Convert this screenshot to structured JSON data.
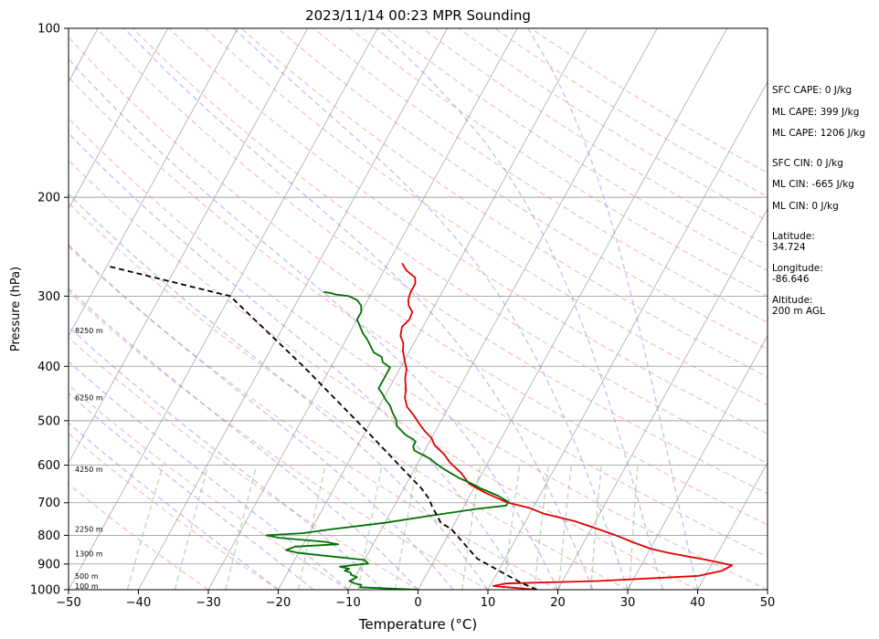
{
  "chart_data": {
    "type": "line",
    "title": "2023/11/14 00:23 MPR Sounding",
    "xlabel": "Temperature (°C)",
    "ylabel": "Pressure (hPa)",
    "xlim": [
      -50,
      50
    ],
    "ylim": [
      1000,
      100
    ],
    "yscale": "log",
    "x_ticks": [
      "-50",
      "-40",
      "-30",
      "-20",
      "-10",
      "0",
      "10",
      "20",
      "30",
      "40",
      "50"
    ],
    "y_ticks": [
      {
        "p": 1000,
        "label": "1000"
      },
      {
        "p": 900,
        "label": "900"
      },
      {
        "p": 800,
        "label": "800"
      },
      {
        "p": 700,
        "label": "700"
      },
      {
        "p": 600,
        "label": "600"
      },
      {
        "p": 500,
        "label": "500"
      },
      {
        "p": 400,
        "label": "400"
      },
      {
        "p": 300,
        "label": "300"
      },
      {
        "p": 200,
        "label": "200"
      },
      {
        "p": 100,
        "label": "100"
      }
    ],
    "height_labels": [
      {
        "p": 985,
        "text": "100 m"
      },
      {
        "p": 945,
        "text": "500 m"
      },
      {
        "p": 862,
        "text": "1300 m"
      },
      {
        "p": 780,
        "text": "2250 m"
      },
      {
        "p": 610,
        "text": "4250 m"
      },
      {
        "p": 455,
        "text": "6250 m"
      },
      {
        "p": 345,
        "text": "8250 m"
      }
    ],
    "info_lines": [
      "SFC CAPE: 0 J/kg",
      "ML CAPE: 399 J/kg",
      "ML CAPE: 1206 J/kg",
      "SFC CIN: 0 J/kg",
      "ML CIN: -665 J/kg",
      "ML CIN: 0 J/kg",
      "Latitude:",
      "34.724",
      "Longitude:",
      "-86.646",
      "Altitude:",
      "200 m AGL"
    ],
    "series": [
      {
        "color": "#e00000",
        "style": "solid",
        "points": [
          [
            17,
            1000
          ],
          [
            10.5,
            985
          ],
          [
            12,
            975
          ],
          [
            25,
            965
          ],
          [
            39,
            945
          ],
          [
            42,
            925
          ],
          [
            43,
            905
          ],
          [
            39,
            885
          ],
          [
            33,
            860
          ],
          [
            30,
            845
          ],
          [
            27,
            823
          ],
          [
            24,
            800
          ],
          [
            21,
            780
          ],
          [
            17,
            755
          ],
          [
            12,
            732
          ],
          [
            9.5,
            715
          ],
          [
            6.5,
            702
          ],
          [
            5,
            693
          ],
          [
            2,
            672
          ],
          [
            -1,
            648
          ],
          [
            -3,
            620
          ],
          [
            -5.5,
            593
          ],
          [
            -7,
            573
          ],
          [
            -9,
            553
          ],
          [
            -10,
            537
          ],
          [
            -11.5,
            522
          ],
          [
            -13,
            505
          ],
          [
            -14,
            493
          ],
          [
            -16,
            472
          ],
          [
            -17,
            455
          ],
          [
            -17.5,
            440
          ],
          [
            -18.5,
            420
          ],
          [
            -19,
            405
          ],
          [
            -20,
            390
          ],
          [
            -21,
            375
          ],
          [
            -21.5,
            364
          ],
          [
            -22.5,
            353
          ],
          [
            -23,
            340
          ],
          [
            -22.5,
            330
          ],
          [
            -22.7,
            320
          ],
          [
            -23.7,
            312
          ],
          [
            -24.2,
            305
          ],
          [
            -24.5,
            295
          ],
          [
            -24.5,
            285
          ],
          [
            -25,
            278
          ],
          [
            -26.8,
            270
          ],
          [
            -28,
            262
          ]
        ]
      },
      {
        "color": "#007000",
        "style": "solid",
        "points": [
          [
            0,
            1000
          ],
          [
            -8.5,
            990
          ],
          [
            -8.5,
            980
          ],
          [
            -9.5,
            975
          ],
          [
            -10.5,
            965
          ],
          [
            -9.7,
            950
          ],
          [
            -10.8,
            940
          ],
          [
            -11,
            932
          ],
          [
            -12,
            925
          ],
          [
            -11.5,
            918
          ],
          [
            -13,
            910
          ],
          [
            -9.2,
            898
          ],
          [
            -10,
            885
          ],
          [
            -14,
            875
          ],
          [
            -20,
            860
          ],
          [
            -22,
            850
          ],
          [
            -21,
            838
          ],
          [
            -15,
            830
          ],
          [
            -17,
            822
          ],
          [
            -24,
            808
          ],
          [
            -26,
            800
          ],
          [
            -21,
            793
          ],
          [
            -17,
            780
          ],
          [
            -10,
            760
          ],
          [
            -4,
            738
          ],
          [
            2,
            718
          ],
          [
            6,
            708
          ],
          [
            6,
            697
          ],
          [
            4,
            680
          ],
          [
            1,
            660
          ],
          [
            -1,
            645
          ],
          [
            -3,
            632
          ],
          [
            -4.5,
            620
          ],
          [
            -6,
            608
          ],
          [
            -7.5,
            595
          ],
          [
            -8.5,
            585
          ],
          [
            -10,
            575
          ],
          [
            -11.5,
            565
          ],
          [
            -12,
            555
          ],
          [
            -12,
            545
          ],
          [
            -12.5,
            540
          ],
          [
            -14,
            530
          ],
          [
            -15,
            520
          ],
          [
            -16,
            510
          ],
          [
            -16.5,
            498
          ],
          [
            -17.5,
            485
          ],
          [
            -18.5,
            470
          ],
          [
            -19.5,
            460
          ],
          [
            -20.5,
            448
          ],
          [
            -21.5,
            438
          ],
          [
            -21.5,
            428
          ],
          [
            -21.5,
            420
          ],
          [
            -21.5,
            412
          ],
          [
            -21.5,
            402
          ],
          [
            -23,
            393
          ],
          [
            -23.5,
            385
          ],
          [
            -25,
            378
          ],
          [
            -26,
            368
          ],
          [
            -27,
            358
          ],
          [
            -28,
            350
          ],
          [
            -29,
            340
          ],
          [
            -30,
            330
          ],
          [
            -30,
            320
          ],
          [
            -30.5,
            312
          ],
          [
            -31.5,
            305
          ],
          [
            -33,
            300
          ],
          [
            -35,
            298
          ],
          [
            -36,
            296
          ],
          [
            -37,
            295
          ]
        ]
      },
      {
        "color": "#000000",
        "style": "dashed",
        "points": [
          [
            17,
            1000
          ],
          [
            14,
            970
          ],
          [
            6,
            880
          ],
          [
            0,
            780
          ],
          [
            -2,
            760
          ],
          [
            -3,
            740
          ],
          [
            -4.5,
            712
          ],
          [
            -5.5,
            690
          ],
          [
            -7.5,
            660
          ],
          [
            -12.5,
            600
          ],
          [
            -19,
            530
          ],
          [
            -34,
            400
          ],
          [
            -50,
            300
          ],
          [
            -70,
            265
          ]
        ]
      }
    ]
  }
}
